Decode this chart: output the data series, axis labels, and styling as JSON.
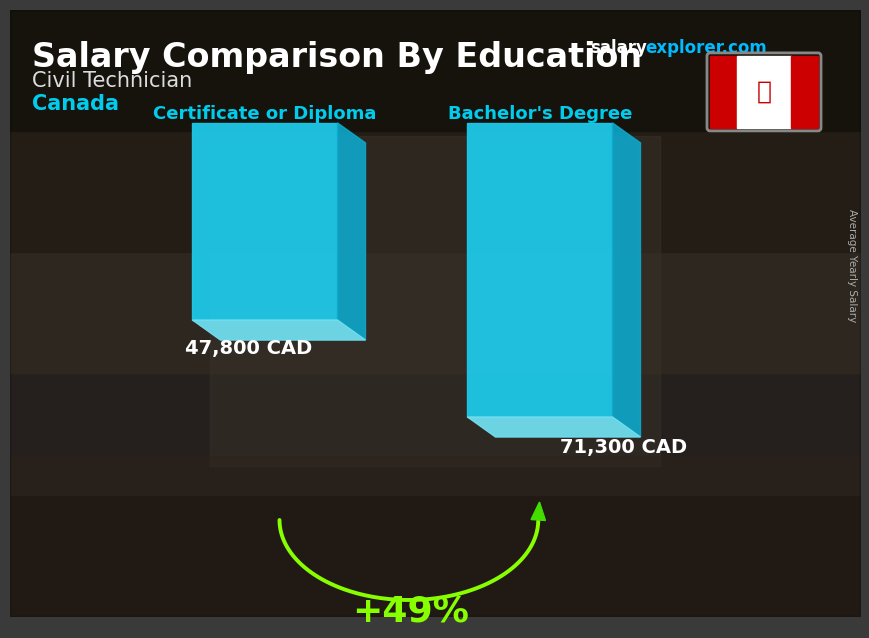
{
  "title_main": "Salary Comparison By Education",
  "subtitle_job": "Civil Technician",
  "subtitle_country": "Canada",
  "categories": [
    "Certificate or Diploma",
    "Bachelor's Degree"
  ],
  "values": [
    47800,
    71300
  ],
  "value_labels": [
    "47,800 CAD",
    "71,300 CAD"
  ],
  "bar_color_face": "#1EC8E8",
  "bar_color_top": "#70DDEF",
  "bar_color_side": "#0EA8CC",
  "pct_label": "+49%",
  "pct_color": "#88FF00",
  "arc_color": "#88FF00",
  "arrow_color": "#44DD00",
  "cat_label_color": "#00CCEE",
  "title_color": "#FFFFFF",
  "subtitle_job_color": "#DDDDDD",
  "subtitle_country_color": "#00CCEE",
  "value_label_color": "#FFFFFF",
  "ylabel": "Average Yearly Salary",
  "ylabel_color": "#BBBBBB",
  "salary_text_color": "#FFFFFF",
  "explorer_text_color": "#00BBFF",
  "fig_width": 8.5,
  "fig_height": 6.06,
  "bg_color": "#3a3a3a"
}
